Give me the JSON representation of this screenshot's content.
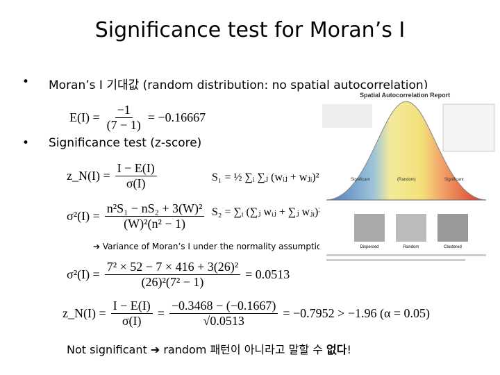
{
  "title": "Significance test for Moran’s I",
  "bullets": [
    "Moran’s I 기대값 (random distribution: no spatial autocorrelation)",
    "Significance test (z-score)"
  ],
  "equations": [
    {
      "lhs": "E(I) =",
      "num": "−1",
      "den": "(7 − 1)",
      "rhs": "= −0.16667"
    },
    {
      "lhs": "z_N(I) =",
      "num": "I − E(I)",
      "den": "σ(I)"
    },
    "S₁ = ½ ∑ᵢ ∑ⱼ (wᵢⱼ + wⱼᵢ)²",
    {
      "lhs": "σ²(I) =",
      "num": "n²S₁ − nS₂ + 3(W)²",
      "den": "(W)²(n² − 1)"
    },
    "S₂ = ∑ᵢ (∑ⱼ wᵢⱼ + ∑ⱼ wⱼᵢ)²",
    {
      "lhs": "σ²(I) =",
      "num": "7² × 52 − 7 × 416 + 3(26)²",
      "den": "(26)²(7² − 1)",
      "rhs": "= 0.0513"
    },
    {
      "lhs": "z_N(I) =",
      "num1": "I − E(I)",
      "den1": "σ(I)",
      "eq": "=",
      "num2": "−0.3468 − (−0.1667)",
      "den2": "√0.0513",
      "rhs": "= −0.7952 > −1.96 (α = 0.05)"
    }
  ],
  "note": "➔ Variance of Moran’s I under the normality assumption",
  "conclusion": {
    "text": "Not significant ➔ random 패턴이 아니라고 말할 수 ",
    "emphasis": "없다",
    "end": "!"
  },
  "report": {
    "title": "Spatial Autocorrelation Report",
    "labels": [
      "Significant",
      "(Random)",
      "Significant"
    ],
    "maps": [
      "Dispersed",
      "Random",
      "Clustered"
    ]
  }
}
